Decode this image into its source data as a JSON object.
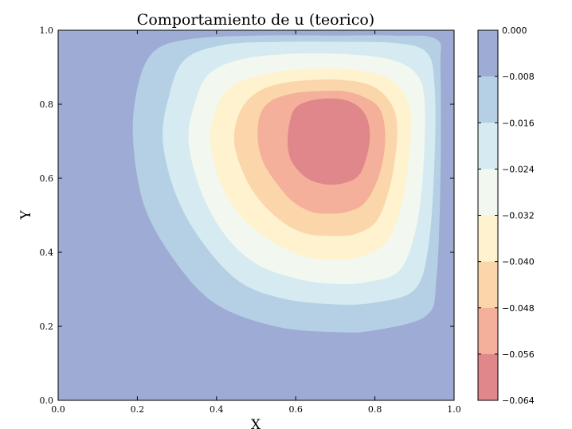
{
  "chart_data": {
    "type": "contourf",
    "title": "Comportamiento de u (teorico)",
    "xlabel": "X",
    "ylabel": "Y",
    "xlim": [
      0.0,
      1.0
    ],
    "ylim": [
      0.0,
      1.0
    ],
    "x_ticks": [
      "0.0",
      "0.2",
      "0.4",
      "0.6",
      "0.8",
      "1.0"
    ],
    "y_ticks": [
      "0.0",
      "0.2",
      "0.4",
      "0.6",
      "0.8",
      "1.0"
    ],
    "grid": false,
    "minimum_location": [
      0.71,
      0.7
    ],
    "levels": [
      0.0,
      -0.008,
      -0.016,
      -0.024,
      -0.032,
      -0.04,
      -0.048,
      -0.056,
      -0.064
    ],
    "colorbar": {
      "tick_labels": [
        "0.000",
        "−0.008",
        "−0.016",
        "−0.024",
        "−0.032",
        "−0.040",
        "−0.048",
        "−0.056",
        "−0.064"
      ],
      "colors": [
        "#9dabd5",
        "#b5d0e4",
        "#d5ebf1",
        "#f2f8ef",
        "#fef2cf",
        "#fcd6ab",
        "#f4b09a",
        "#e0878b"
      ]
    },
    "contours": [
      {
        "level": -0.008,
        "outline": [
          [
            0.19,
            0.7
          ],
          [
            0.2,
            0.84
          ],
          [
            0.24,
            0.94
          ],
          [
            0.33,
            0.975
          ],
          [
            0.5,
            0.985
          ],
          [
            0.7,
            0.985
          ],
          [
            0.85,
            0.985
          ],
          [
            0.955,
            0.975
          ],
          [
            0.965,
            0.9
          ],
          [
            0.965,
            0.6
          ],
          [
            0.955,
            0.33
          ],
          [
            0.93,
            0.23
          ],
          [
            0.8,
            0.19
          ],
          [
            0.7,
            0.185
          ],
          [
            0.55,
            0.2
          ],
          [
            0.4,
            0.26
          ],
          [
            0.3,
            0.37
          ],
          [
            0.22,
            0.52
          ]
        ]
      },
      {
        "level": -0.016,
        "outline": [
          [
            0.265,
            0.7
          ],
          [
            0.28,
            0.82
          ],
          [
            0.32,
            0.92
          ],
          [
            0.42,
            0.96
          ],
          [
            0.56,
            0.968
          ],
          [
            0.72,
            0.968
          ],
          [
            0.85,
            0.965
          ],
          [
            0.93,
            0.94
          ],
          [
            0.95,
            0.85
          ],
          [
            0.95,
            0.65
          ],
          [
            0.935,
            0.42
          ],
          [
            0.9,
            0.3
          ],
          [
            0.8,
            0.265
          ],
          [
            0.7,
            0.26
          ],
          [
            0.57,
            0.275
          ],
          [
            0.46,
            0.32
          ],
          [
            0.37,
            0.42
          ],
          [
            0.3,
            0.55
          ]
        ]
      },
      {
        "level": -0.024,
        "outline": [
          [
            0.33,
            0.7
          ],
          [
            0.345,
            0.8
          ],
          [
            0.38,
            0.88
          ],
          [
            0.46,
            0.92
          ],
          [
            0.58,
            0.935
          ],
          [
            0.72,
            0.935
          ],
          [
            0.84,
            0.92
          ],
          [
            0.905,
            0.88
          ],
          [
            0.925,
            0.8
          ],
          [
            0.92,
            0.6
          ],
          [
            0.9,
            0.45
          ],
          [
            0.86,
            0.35
          ],
          [
            0.78,
            0.32
          ],
          [
            0.7,
            0.315
          ],
          [
            0.6,
            0.33
          ],
          [
            0.5,
            0.37
          ],
          [
            0.42,
            0.45
          ],
          [
            0.36,
            0.57
          ]
        ]
      },
      {
        "level": -0.032,
        "outline": [
          [
            0.385,
            0.7
          ],
          [
            0.4,
            0.79
          ],
          [
            0.44,
            0.85
          ],
          [
            0.52,
            0.88
          ],
          [
            0.62,
            0.895
          ],
          [
            0.72,
            0.895
          ],
          [
            0.81,
            0.88
          ],
          [
            0.865,
            0.84
          ],
          [
            0.89,
            0.77
          ],
          [
            0.885,
            0.65
          ],
          [
            0.865,
            0.52
          ],
          [
            0.83,
            0.43
          ],
          [
            0.77,
            0.39
          ],
          [
            0.7,
            0.38
          ],
          [
            0.62,
            0.39
          ],
          [
            0.54,
            0.43
          ],
          [
            0.46,
            0.5
          ],
          [
            0.41,
            0.59
          ]
        ]
      },
      {
        "level": -0.04,
        "outline": [
          [
            0.445,
            0.7
          ],
          [
            0.46,
            0.78
          ],
          [
            0.5,
            0.83
          ],
          [
            0.56,
            0.855
          ],
          [
            0.64,
            0.865
          ],
          [
            0.72,
            0.865
          ],
          [
            0.79,
            0.85
          ],
          [
            0.835,
            0.81
          ],
          [
            0.855,
            0.75
          ],
          [
            0.85,
            0.65
          ],
          [
            0.83,
            0.55
          ],
          [
            0.8,
            0.48
          ],
          [
            0.75,
            0.45
          ],
          [
            0.7,
            0.445
          ],
          [
            0.63,
            0.45
          ],
          [
            0.57,
            0.48
          ],
          [
            0.51,
            0.54
          ],
          [
            0.47,
            0.61
          ]
        ]
      },
      {
        "level": -0.048,
        "outline": [
          [
            0.505,
            0.7
          ],
          [
            0.51,
            0.77
          ],
          [
            0.54,
            0.81
          ],
          [
            0.6,
            0.83
          ],
          [
            0.66,
            0.835
          ],
          [
            0.72,
            0.835
          ],
          [
            0.77,
            0.82
          ],
          [
            0.81,
            0.79
          ],
          [
            0.825,
            0.73
          ],
          [
            0.82,
            0.65
          ],
          [
            0.8,
            0.58
          ],
          [
            0.77,
            0.53
          ],
          [
            0.73,
            0.51
          ],
          [
            0.69,
            0.505
          ],
          [
            0.64,
            0.51
          ],
          [
            0.59,
            0.54
          ],
          [
            0.55,
            0.59
          ],
          [
            0.52,
            0.64
          ]
        ]
      },
      {
        "level": -0.056,
        "outline": [
          [
            0.58,
            0.7
          ],
          [
            0.585,
            0.75
          ],
          [
            0.6,
            0.79
          ],
          [
            0.64,
            0.81
          ],
          [
            0.7,
            0.815
          ],
          [
            0.74,
            0.805
          ],
          [
            0.77,
            0.78
          ],
          [
            0.785,
            0.74
          ],
          [
            0.785,
            0.69
          ],
          [
            0.77,
            0.63
          ],
          [
            0.75,
            0.6
          ],
          [
            0.71,
            0.585
          ],
          [
            0.67,
            0.585
          ],
          [
            0.63,
            0.6
          ],
          [
            0.6,
            0.63
          ],
          [
            0.585,
            0.66
          ]
        ]
      }
    ]
  }
}
